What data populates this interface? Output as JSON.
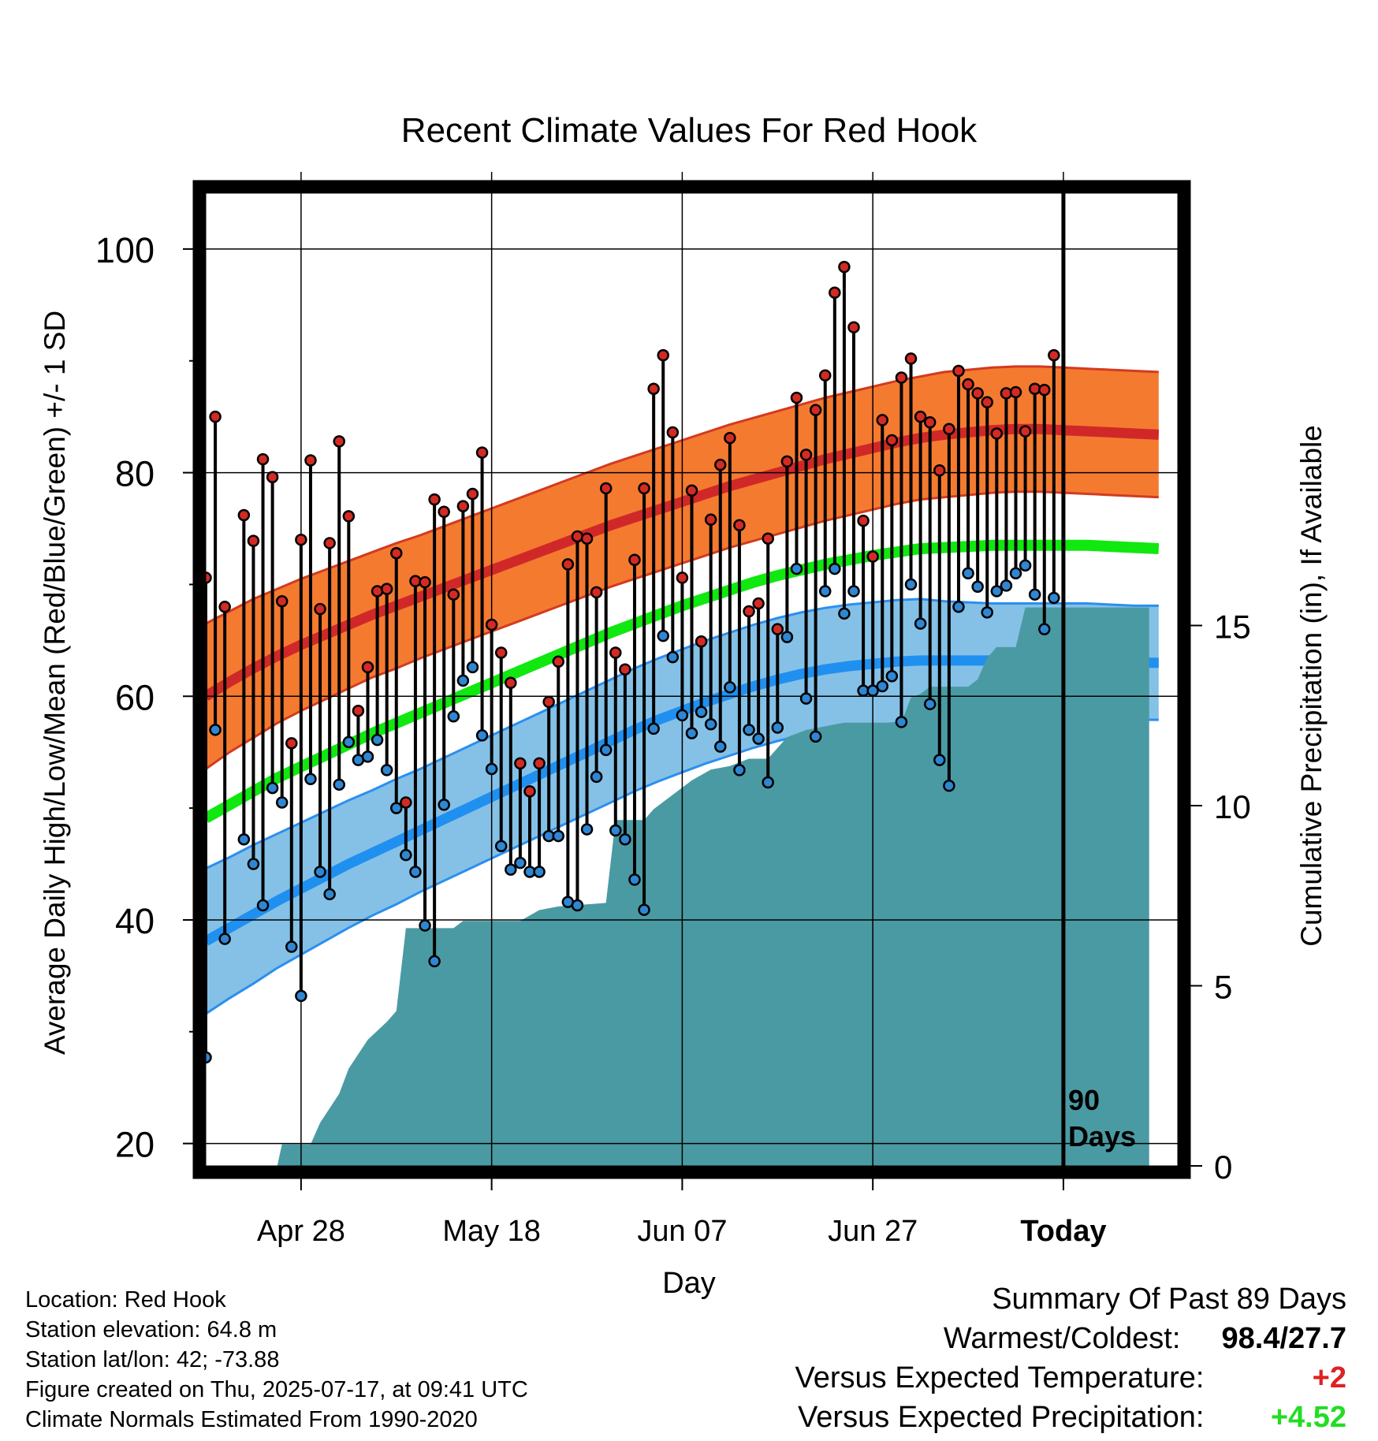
{
  "chart_data": {
    "type": "line",
    "title": "Recent Climate Values For Red Hook",
    "xlabel": "Day",
    "ylabel": "Average Daily High/Low/Mean (Red/Blue/Green) +/- 1 SD",
    "y2label": "Cumulative Precipitation (in), If Available",
    "ylim": [
      18,
      105
    ],
    "y2lim": [
      0,
      27
    ],
    "yticks": [
      "20",
      "40",
      "60",
      "80",
      "100"
    ],
    "y2ticks": [
      "0",
      "5",
      "10",
      "15"
    ],
    "xlim": [
      -10,
      92
    ],
    "xticks": [
      {
        "day": 0,
        "label": "Apr 28"
      },
      {
        "day": 20,
        "label": "May 18"
      },
      {
        "day": 40,
        "label": "Jun 07"
      },
      {
        "day": 60,
        "label": "Jun 27"
      },
      {
        "day": 80,
        "label": "Today"
      }
    ],
    "grid": true,
    "today_day": 80,
    "today_label": [
      "90",
      "Days"
    ],
    "days": [
      -10,
      -9,
      -8,
      -7,
      -6,
      -5,
      -4,
      -3,
      -2,
      -1,
      0,
      1,
      2,
      3,
      4,
      5,
      6,
      7,
      8,
      9,
      10,
      11,
      12,
      13,
      14,
      15,
      16,
      17,
      18,
      19,
      20,
      21,
      22,
      23,
      24,
      25,
      26,
      27,
      28,
      29,
      30,
      31,
      32,
      33,
      34,
      35,
      36,
      37,
      38,
      39,
      40,
      41,
      42,
      43,
      44,
      45,
      46,
      47,
      48,
      49,
      50,
      51,
      52,
      53,
      54,
      55,
      56,
      57,
      58,
      59,
      60,
      61,
      62,
      63,
      64,
      65,
      66,
      67,
      68,
      69,
      70,
      71,
      72,
      73,
      74,
      75,
      76,
      77,
      78,
      79,
      80
    ],
    "highs": [
      70.6,
      85.0,
      68.0,
      null,
      76.2,
      73.9,
      81.2,
      79.6,
      68.5,
      55.8,
      74.0,
      81.1,
      67.8,
      73.7,
      82.8,
      76.1,
      58.7,
      62.6,
      69.4,
      69.6,
      72.8,
      50.5,
      70.3,
      70.2,
      77.6,
      76.5,
      69.1,
      77.0,
      78.1,
      81.8,
      66.4,
      63.9,
      61.2,
      54.0,
      51.5,
      54.0,
      59.5,
      63.1,
      71.8,
      74.3,
      74.1,
      69.3,
      78.6,
      63.9,
      62.4,
      72.2,
      78.6,
      87.5,
      90.5,
      83.6,
      70.6,
      78.4,
      64.9,
      75.8,
      80.7,
      83.1,
      75.3,
      67.6,
      68.3,
      74.1,
      66.0,
      81.0,
      86.7,
      81.6,
      85.6,
      88.7,
      96.1,
      98.4,
      93.0,
      75.7,
      72.5,
      84.7,
      82.9,
      88.5,
      90.2,
      85.0,
      84.5,
      80.2,
      83.9,
      89.1,
      87.9,
      87.1,
      86.3,
      83.5,
      87.1,
      87.2,
      83.7,
      87.5,
      87.4,
      90.5,
      null
    ],
    "lows": [
      27.7,
      57.0,
      38.3,
      null,
      47.2,
      45.0,
      41.3,
      51.8,
      50.5,
      37.6,
      33.2,
      52.6,
      44.3,
      42.3,
      52.1,
      55.9,
      54.3,
      54.6,
      56.1,
      53.4,
      50.0,
      45.8,
      44.3,
      39.5,
      36.3,
      50.3,
      58.2,
      61.4,
      62.6,
      56.5,
      53.5,
      46.6,
      44.5,
      45.1,
      44.3,
      44.3,
      47.5,
      47.5,
      41.6,
      41.3,
      48.1,
      52.8,
      55.2,
      48.0,
      47.2,
      43.6,
      40.9,
      57.1,
      65.4,
      63.5,
      58.3,
      56.7,
      58.6,
      57.5,
      55.5,
      60.8,
      53.4,
      57.0,
      56.2,
      52.3,
      57.2,
      65.3,
      71.4,
      59.8,
      56.4,
      69.4,
      71.4,
      67.4,
      69.4,
      60.5,
      60.5,
      60.9,
      61.8,
      57.7,
      70.0,
      66.5,
      59.3,
      54.3,
      52.0,
      68.0,
      71.0,
      69.8,
      67.5,
      69.4,
      69.9,
      71.0,
      71.7,
      69.1,
      66.0,
      68.8,
      null
    ],
    "normal_high": [
      60.0,
      61.3,
      62.5,
      63.6,
      64.6,
      65.5,
      66.4,
      67.3,
      68.1,
      68.9,
      69.7,
      70.5,
      71.3,
      72.1,
      72.9,
      73.7,
      74.5,
      75.3,
      76.0,
      76.7,
      77.4,
      78.1,
      78.8,
      79.4,
      80.0,
      80.6,
      81.2,
      81.7,
      82.2,
      82.7,
      83.1,
      83.4,
      83.6,
      83.8,
      83.9,
      83.9,
      83.8,
      83.7,
      83.6,
      83.5,
      83.4
    ],
    "normal_low": [
      38.1,
      39.3,
      40.5,
      41.7,
      42.8,
      43.9,
      45.0,
      46.0,
      47.0,
      48.0,
      49.0,
      50.0,
      51.0,
      52.0,
      53.0,
      54.0,
      55.0,
      56.0,
      57.0,
      57.9,
      58.7,
      59.5,
      60.2,
      60.9,
      61.5,
      62.0,
      62.4,
      62.7,
      62.9,
      63.1,
      63.2,
      63.2,
      63.2,
      63.2,
      63.2,
      63.2,
      63.2,
      63.2,
      63.1,
      63.0,
      63.0
    ],
    "normal_high_sd": [
      6.5,
      6.3,
      6.2,
      6.0,
      5.9,
      5.8,
      5.7,
      5.6,
      5.6,
      5.5,
      5.5,
      5.5,
      5.5,
      5.5,
      5.5,
      5.5,
      5.5,
      5.5,
      5.5,
      5.5,
      5.5,
      5.5,
      5.5,
      5.5,
      5.5,
      5.5,
      5.5,
      5.5,
      5.5,
      5.5,
      5.5,
      5.6,
      5.6,
      5.6,
      5.6,
      5.6,
      5.6,
      5.6,
      5.6,
      5.6,
      5.6
    ],
    "normal_low_sd": [
      6.5,
      6.3,
      6.2,
      6.0,
      5.9,
      5.8,
      5.7,
      5.6,
      5.6,
      5.5,
      5.5,
      5.5,
      5.5,
      5.5,
      5.5,
      5.5,
      5.5,
      5.5,
      5.5,
      5.5,
      5.5,
      5.5,
      5.5,
      5.5,
      5.5,
      5.5,
      5.5,
      5.5,
      5.5,
      5.5,
      5.5,
      5.3,
      5.2,
      5.1,
      5.1,
      5.1,
      5.1,
      5.1,
      5.1,
      5.1,
      5.1
    ],
    "normal_mean": [
      49.1,
      50.3,
      51.5,
      52.7,
      53.7,
      54.7,
      55.7,
      56.7,
      57.6,
      58.5,
      59.4,
      60.3,
      61.2,
      62.1,
      63.0,
      63.9,
      64.8,
      65.7,
      66.5,
      67.3,
      68.1,
      68.8,
      69.5,
      70.2,
      70.8,
      71.3,
      71.8,
      72.2,
      72.6,
      72.9,
      73.2,
      73.3,
      73.4,
      73.5,
      73.5,
      73.5,
      73.5,
      73.5,
      73.4,
      73.3,
      73.2
    ],
    "precip_cumulative": [
      {
        "day": -2.5,
        "value": 0
      },
      {
        "day": -2,
        "value": 0.6
      },
      {
        "day": 1,
        "value": 0.6
      },
      {
        "day": 2,
        "value": 1.2
      },
      {
        "day": 4,
        "value": 2.0
      },
      {
        "day": 5,
        "value": 2.7
      },
      {
        "day": 7,
        "value": 3.5
      },
      {
        "day": 9,
        "value": 4.0
      },
      {
        "day": 10,
        "value": 4.3
      },
      {
        "day": 11,
        "value": 6.6
      },
      {
        "day": 16,
        "value": 6.6
      },
      {
        "day": 17,
        "value": 6.8
      },
      {
        "day": 23,
        "value": 6.8
      },
      {
        "day": 25,
        "value": 7.1
      },
      {
        "day": 27,
        "value": 7.2
      },
      {
        "day": 32,
        "value": 7.3
      },
      {
        "day": 33,
        "value": 9.6
      },
      {
        "day": 36,
        "value": 9.6
      },
      {
        "day": 37,
        "value": 9.9
      },
      {
        "day": 39,
        "value": 10.3
      },
      {
        "day": 41,
        "value": 10.7
      },
      {
        "day": 43,
        "value": 11.0
      },
      {
        "day": 45,
        "value": 11.1
      },
      {
        "day": 47,
        "value": 11.3
      },
      {
        "day": 49,
        "value": 11.3
      },
      {
        "day": 51,
        "value": 11.9
      },
      {
        "day": 53,
        "value": 12.1
      },
      {
        "day": 55,
        "value": 12.2
      },
      {
        "day": 57,
        "value": 12.3
      },
      {
        "day": 63,
        "value": 12.3
      },
      {
        "day": 64,
        "value": 13.0
      },
      {
        "day": 65,
        "value": 13.1
      },
      {
        "day": 66,
        "value": 13.3
      },
      {
        "day": 70,
        "value": 13.3
      },
      {
        "day": 71,
        "value": 13.5
      },
      {
        "day": 72,
        "value": 14.1
      },
      {
        "day": 73,
        "value": 14.4
      },
      {
        "day": 75,
        "value": 14.4
      },
      {
        "day": 76,
        "value": 15.5
      },
      {
        "day": 89,
        "value": 15.5
      }
    ],
    "colors": {
      "high_band": "#f47a30",
      "high_line": "#d02828",
      "low_band": "#85c1e6",
      "low_line": "#2090f0",
      "mean_line": "#10e810",
      "precip": "#4a9aa3",
      "high_dot": "#d42a24",
      "low_dot": "#2f86d2"
    }
  },
  "info": {
    "location": "Location: Red Hook",
    "elevation": "Station elevation: 64.8 m",
    "latlon": "Station lat/lon: 42; -73.88",
    "created": "Figure created on Thu, 2025-07-17, at 09:41 UTC",
    "normals": "Climate Normals Estimated From 1990-2020"
  },
  "summary": {
    "title": "Summary Of Past 89 Days",
    "extremes_label": "Warmest/Coldest:",
    "extremes_value": "98.4/27.7",
    "temp_label": "Versus Expected Temperature:",
    "temp_value": "+2",
    "temp_color": "#dd2222",
    "precip_label": "Versus Expected Precipitation:",
    "precip_value": "+4.52",
    "precip_color": "#22dd22"
  }
}
